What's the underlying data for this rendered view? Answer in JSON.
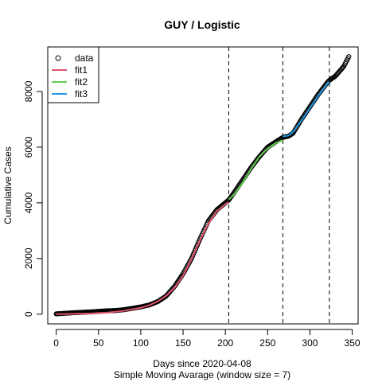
{
  "chart_data": {
    "type": "line",
    "title": "GUY / Logistic",
    "xlabel": "Days since 2020-04-08",
    "xlabel2": "Simple Moving Avarage (window size = 7)",
    "ylabel": "Cumulative Cases",
    "xlim": [
      -10,
      357
    ],
    "ylim": [
      -350,
      9600
    ],
    "xticks": [
      0,
      50,
      100,
      150,
      200,
      250,
      300,
      350
    ],
    "yticks": [
      0,
      2000,
      4000,
      6000,
      8000
    ],
    "vlines": [
      204,
      268,
      323
    ],
    "legend_position": "top-left",
    "data": {
      "name": "data",
      "color": "#000000",
      "x_start": 0,
      "x_end": 346,
      "anchors": {
        "x": [
          0,
          10,
          20,
          30,
          40,
          50,
          60,
          70,
          80,
          90,
          100,
          110,
          120,
          130,
          140,
          150,
          160,
          170,
          180,
          190,
          200,
          204,
          210,
          220,
          230,
          240,
          250,
          260,
          268,
          275,
          280,
          290,
          300,
          310,
          320,
          323,
          330,
          340,
          346
        ],
        "y": [
          10,
          30,
          50,
          65,
          80,
          100,
          120,
          130,
          160,
          210,
          260,
          330,
          450,
          650,
          1000,
          1450,
          2000,
          2700,
          3350,
          3750,
          4000,
          4100,
          4350,
          4800,
          5250,
          5650,
          6000,
          6200,
          6350,
          6400,
          6500,
          7000,
          7450,
          7900,
          8300,
          8400,
          8550,
          8900,
          9250
        ]
      }
    },
    "series": [
      {
        "name": "fit1",
        "color": "#DF536B",
        "x": [
          0,
          20,
          40,
          60,
          80,
          100,
          110,
          120,
          130,
          140,
          150,
          160,
          170,
          180,
          190,
          200,
          204
        ],
        "y": [
          0,
          10,
          25,
          55,
          120,
          230,
          320,
          460,
          660,
          950,
          1380,
          1980,
          2650,
          3250,
          3700,
          3950,
          4020
        ]
      },
      {
        "name": "fit2",
        "color": "#61D04F",
        "x": [
          204,
          210,
          220,
          230,
          240,
          250,
          260,
          268
        ],
        "y": [
          4120,
          4280,
          4700,
          5200,
          5650,
          5950,
          6150,
          6250
        ]
      },
      {
        "name": "fit3",
        "color": "#2297E6",
        "x": [
          268,
          275,
          280,
          290,
          300,
          310,
          320,
          323
        ],
        "y": [
          6380,
          6420,
          6550,
          6950,
          7400,
          7850,
          8250,
          8350
        ]
      }
    ]
  }
}
